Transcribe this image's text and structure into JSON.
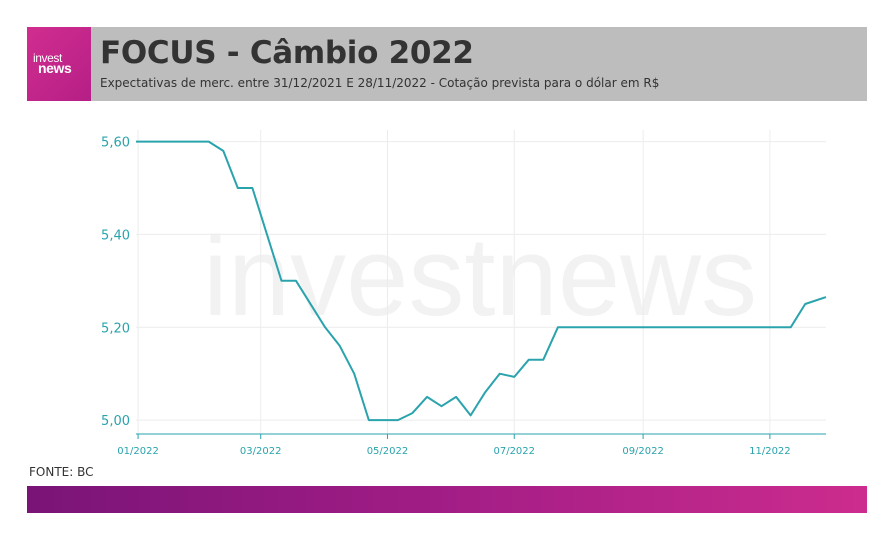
{
  "header": {
    "logo_top": "invest",
    "logo_bottom": "news",
    "title": "FOCUS - Câmbio 2022",
    "subtitle": "Expectativas de merc. entre 31/12/2021 E 28/11/2022 - Cotação prevista para o dólar em R$"
  },
  "source": "FONTE: BC",
  "watermark": "investnews",
  "colors": {
    "line": "#2aa3ad",
    "axis_text": "#2aa3ad",
    "grid": "#ececec",
    "header_bg": "#bdbdbd",
    "brand_pink": "#d12d8f",
    "brand_purple": "#7a1477"
  },
  "chart_data": {
    "type": "line",
    "title": "FOCUS - Câmbio 2022",
    "xlabel": "",
    "ylabel": "",
    "ylim": [
      4.97,
      5.625
    ],
    "xlim": [
      "2021-12-31",
      "2022-11-28"
    ],
    "grid": true,
    "yticks": [
      5.0,
      5.2,
      5.4,
      5.6
    ],
    "ytick_labels": [
      "5,00",
      "5,20",
      "5,40",
      "5,60"
    ],
    "xticks": [
      "2022-01-01",
      "2022-03-01",
      "2022-05-01",
      "2022-07-01",
      "2022-09-01",
      "2022-11-01"
    ],
    "xtick_labels": [
      "01/2022",
      "03/2022",
      "05/2022",
      "07/2022",
      "09/2022",
      "11/2022"
    ],
    "series": [
      {
        "name": "",
        "points": [
          {
            "x": "2021-12-31",
            "y": 5.6
          },
          {
            "x": "2022-02-04",
            "y": 5.6
          },
          {
            "x": "2022-02-11",
            "y": 5.58
          },
          {
            "x": "2022-02-18",
            "y": 5.5
          },
          {
            "x": "2022-02-25",
            "y": 5.5
          },
          {
            "x": "2022-03-11",
            "y": 5.3
          },
          {
            "x": "2022-03-18",
            "y": 5.3
          },
          {
            "x": "2022-04-01",
            "y": 5.2
          },
          {
            "x": "2022-04-08",
            "y": 5.16
          },
          {
            "x": "2022-04-15",
            "y": 5.1
          },
          {
            "x": "2022-04-22",
            "y": 5.0
          },
          {
            "x": "2022-05-06",
            "y": 5.0
          },
          {
            "x": "2022-05-13",
            "y": 5.015
          },
          {
            "x": "2022-05-20",
            "y": 5.05
          },
          {
            "x": "2022-05-27",
            "y": 5.03
          },
          {
            "x": "2022-06-03",
            "y": 5.05
          },
          {
            "x": "2022-06-10",
            "y": 5.01
          },
          {
            "x": "2022-06-17",
            "y": 5.06
          },
          {
            "x": "2022-06-24",
            "y": 5.1
          },
          {
            "x": "2022-07-01",
            "y": 5.093
          },
          {
            "x": "2022-07-08",
            "y": 5.13
          },
          {
            "x": "2022-07-15",
            "y": 5.13
          },
          {
            "x": "2022-07-22",
            "y": 5.2
          },
          {
            "x": "2022-11-11",
            "y": 5.2
          },
          {
            "x": "2022-11-18",
            "y": 5.25
          },
          {
            "x": "2022-11-28",
            "y": 5.265
          }
        ]
      }
    ]
  }
}
